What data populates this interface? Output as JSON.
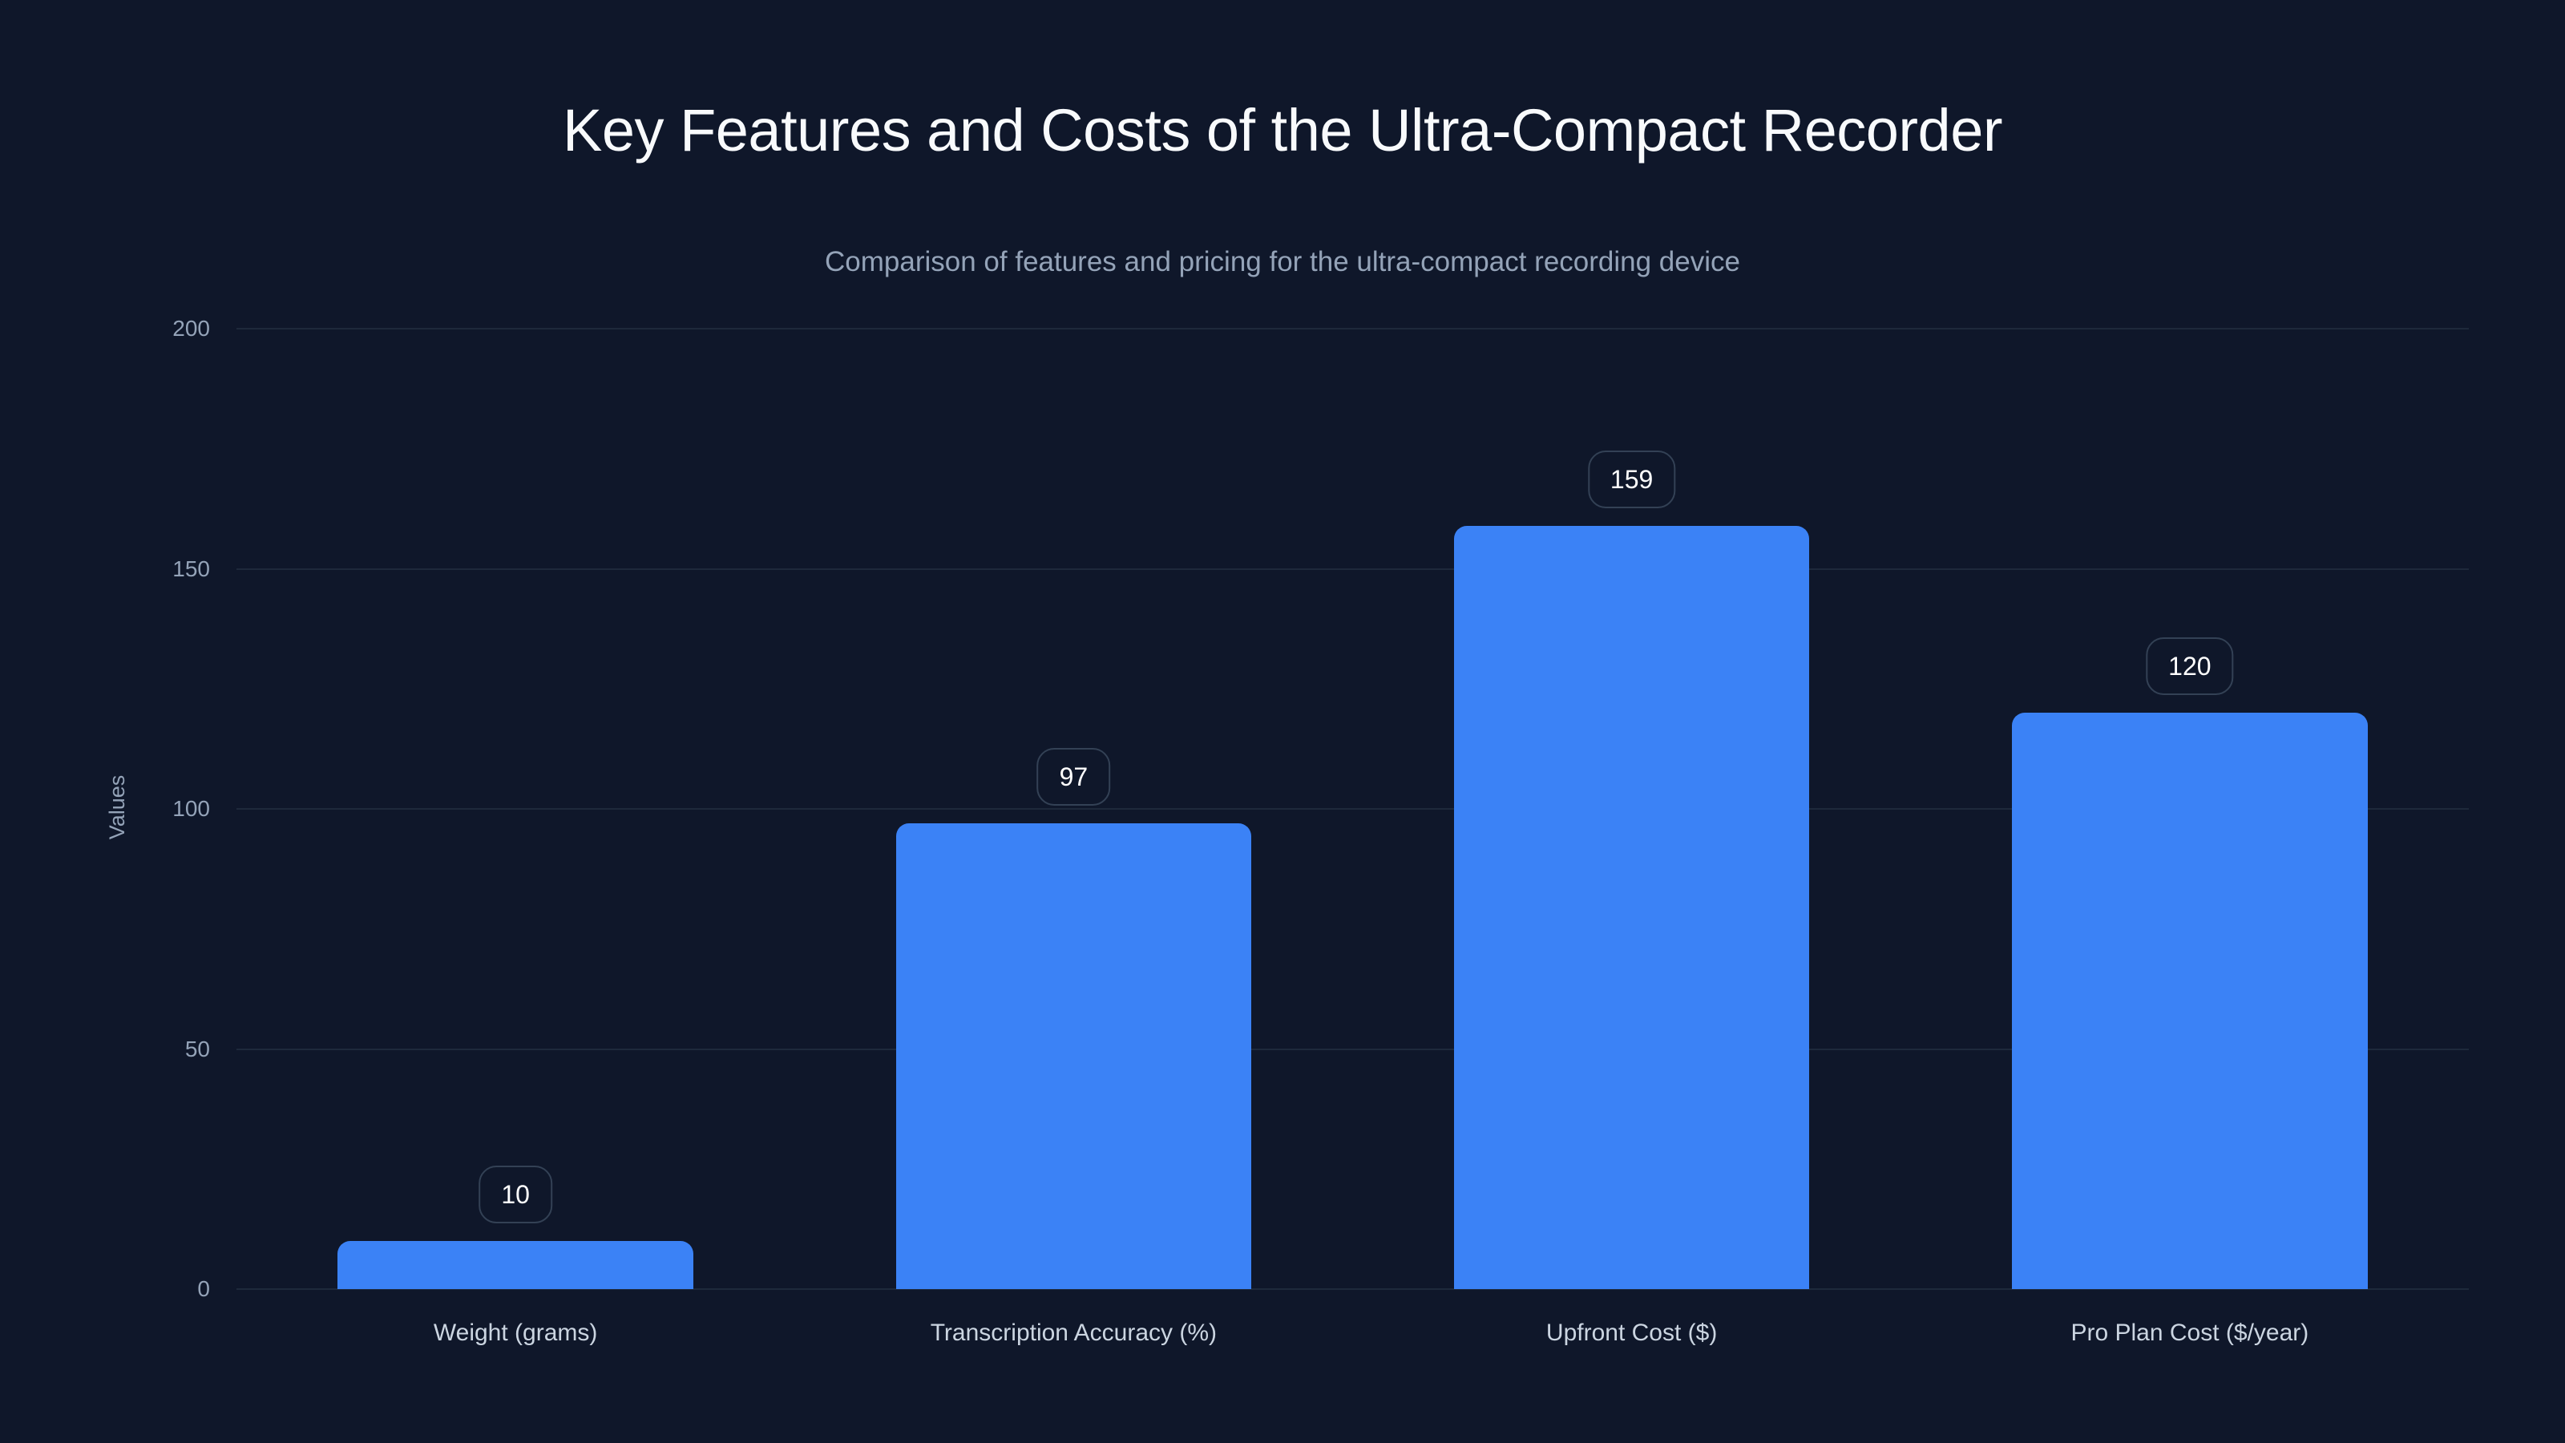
{
  "header": {
    "title": "Key Features and Costs of the Ultra-Compact Recorder",
    "subtitle": "Comparison of features and pricing for the ultra-compact recording device"
  },
  "colors": {
    "background": "#0f172a",
    "bar": "#3b82f6",
    "gridline": "#1e293b",
    "label_border": "#334155",
    "title": "#f8fafc",
    "muted_text": "#94a3b8",
    "category_text": "#cbd5e1"
  },
  "chart_data": {
    "type": "bar",
    "title": "Key Features and Costs of the Ultra-Compact Recorder",
    "subtitle": "Comparison of features and pricing for the ultra-compact recording device",
    "categories": [
      "Weight (grams)",
      "Transcription Accuracy (%)",
      "Upfront Cost ($)",
      "Pro Plan Cost ($/year)"
    ],
    "values": [
      10,
      97,
      159,
      120
    ],
    "data_labels": [
      "10",
      "97",
      "159",
      "120"
    ],
    "xlabel": "",
    "ylabel": "Values",
    "ylim": [
      0,
      200
    ],
    "yticks": [
      0,
      50,
      100,
      150,
      200
    ],
    "ytick_labels": [
      "0",
      "50",
      "100",
      "150",
      "200"
    ],
    "grid": true,
    "legend": null
  }
}
